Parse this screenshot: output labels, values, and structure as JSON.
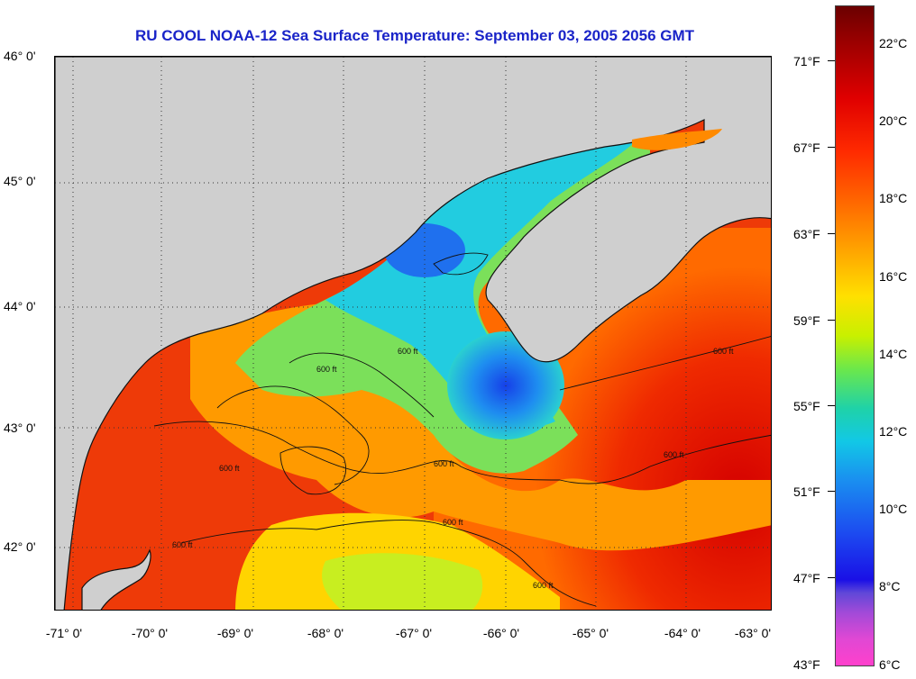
{
  "title": "RU COOL  NOAA-12  Sea Surface Temperature:  September 03, 2005 2056 GMT",
  "map": {
    "lat_labels": [
      "46° 0'",
      "45° 0'",
      "44° 0'",
      "43° 0'",
      "42° 0'"
    ],
    "lon_labels": [
      "-71° 0'",
      "-70° 0'",
      "-69° 0'",
      "-68° 0'",
      "-67° 0'",
      "-66° 0'",
      "-65° 0'",
      "-64° 0'",
      "-63° 0'"
    ],
    "contour_label": "600 ft",
    "land_color": "#cfcfcf",
    "coast_color": "#111111"
  },
  "colorbar": {
    "fahrenheit_labels": [
      "71°F",
      "67°F",
      "63°F",
      "59°F",
      "55°F",
      "51°F",
      "47°F",
      "43°F"
    ],
    "celsius_labels": [
      "22°C",
      "20°C",
      "18°C",
      "16°C",
      "14°C",
      "12°C",
      "10°C",
      "8°C",
      "6°C"
    ]
  }
}
